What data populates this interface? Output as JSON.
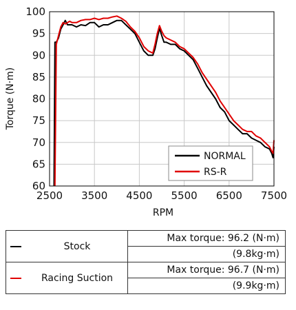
{
  "chart_data": {
    "type": "line",
    "xlabel": "RPM",
    "ylabel": "Torque (N·m)",
    "xlim": [
      2500,
      7500
    ],
    "ylim": [
      60,
      100
    ],
    "x_ticks": [
      "2500",
      "3500",
      "4500",
      "5500",
      "6500",
      "7500"
    ],
    "y_ticks": [
      "60",
      "65",
      "70",
      "75",
      "80",
      "85",
      "90",
      "95",
      "100"
    ],
    "grid": true,
    "legend_position": "bottom-right",
    "series": [
      {
        "name": "NORMAL",
        "color": "#000000",
        "x": [
          2600,
          2620,
          2650,
          2700,
          2750,
          2800,
          2850,
          2900,
          2950,
          3000,
          3100,
          3200,
          3300,
          3400,
          3500,
          3600,
          3700,
          3800,
          3900,
          4000,
          4100,
          4200,
          4300,
          4400,
          4500,
          4600,
          4700,
          4800,
          4850,
          4900,
          4950,
          5000,
          5050,
          5100,
          5200,
          5300,
          5400,
          5500,
          5600,
          5700,
          5800,
          5900,
          6000,
          6100,
          6200,
          6300,
          6400,
          6500,
          6600,
          6700,
          6800,
          6900,
          7000,
          7100,
          7200,
          7300,
          7400,
          7450,
          7480,
          7500
        ],
        "y": [
          60,
          93,
          93,
          94,
          96,
          97,
          98,
          97,
          97,
          97,
          96.5,
          97,
          96.8,
          97.5,
          97.5,
          96.5,
          97,
          97,
          97.5,
          98,
          98,
          97,
          96,
          95,
          93,
          91,
          90,
          90,
          91.5,
          94,
          96.2,
          94.5,
          93,
          93,
          92.5,
          92.5,
          91.5,
          91,
          90,
          89,
          87,
          85,
          83,
          81.5,
          80,
          78,
          77,
          75,
          74,
          73,
          72,
          72,
          71,
          70.5,
          70,
          69,
          68.5,
          67.5,
          66.5,
          69
        ]
      },
      {
        "name": "RS-R",
        "color": "#e00000",
        "x": [
          2620,
          2650,
          2700,
          2750,
          2800,
          2850,
          2900,
          2950,
          3000,
          3100,
          3200,
          3300,
          3400,
          3500,
          3600,
          3700,
          3800,
          3900,
          4000,
          4100,
          4200,
          4300,
          4400,
          4500,
          4600,
          4700,
          4800,
          4850,
          4900,
          4950,
          5000,
          5050,
          5100,
          5200,
          5300,
          5400,
          5500,
          5600,
          5700,
          5800,
          5900,
          6000,
          6100,
          6200,
          6300,
          6400,
          6500,
          6600,
          6700,
          6800,
          6900,
          7000,
          7100,
          7200,
          7300,
          7400,
          7450,
          7480,
          7500
        ],
        "y": [
          60,
          92.5,
          94.5,
          96.5,
          97.5,
          97.2,
          97.5,
          97.8,
          97.5,
          97.5,
          98,
          98.2,
          98.2,
          98.5,
          98.2,
          98.5,
          98.5,
          98.8,
          99,
          98.5,
          97.8,
          96.5,
          95.5,
          94,
          92,
          91,
          90.5,
          92.5,
          95,
          96.8,
          95.5,
          94.5,
          94,
          93.5,
          93,
          92,
          91.5,
          90.5,
          89.5,
          88,
          86,
          84.5,
          83,
          81.5,
          79.5,
          78,
          76.5,
          75,
          74,
          73,
          72.5,
          72.5,
          71.5,
          71,
          70,
          69,
          68,
          67.5,
          70.5
        ]
      }
    ]
  },
  "summary_table": {
    "rows": [
      {
        "swatch_color": "#000000",
        "name": "Stock",
        "max_torque": "Max torque: 96.2 (N·m)",
        "kg": "(9.8kg·m)"
      },
      {
        "swatch_color": "#e00000",
        "name": "Racing Suction",
        "max_torque": "Max torque: 96.7 (N·m)",
        "kg": "(9.9kg·m)"
      }
    ]
  }
}
